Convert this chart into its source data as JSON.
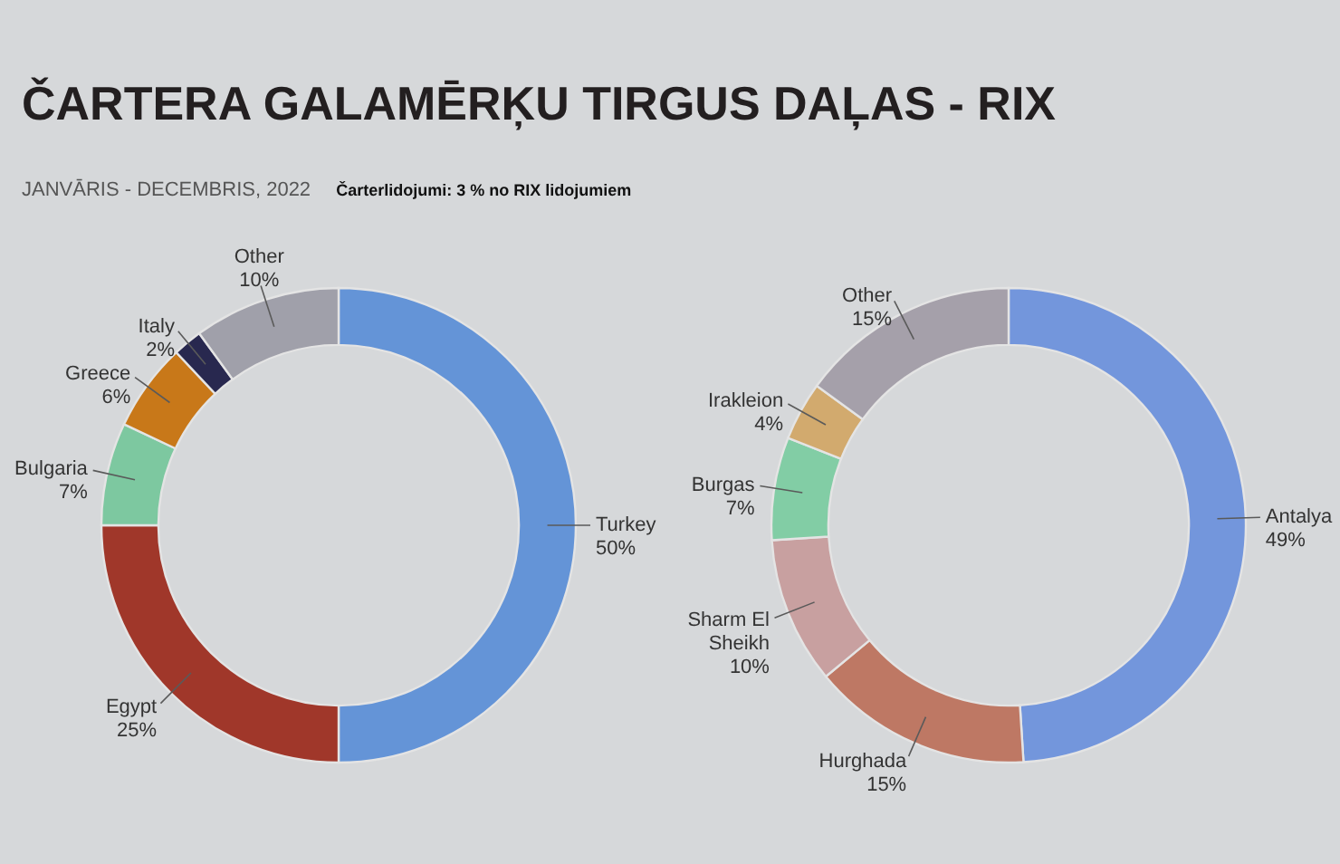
{
  "chart_data": [
    {
      "type": "donut",
      "title": "ČARTERA GALAMĒRĶU TIRGUS DAĻAS - RIX",
      "subtitle": "JANVĀRIS - DECEMBRIS, 2022",
      "annotations": [
        "Čarterlidojumi: 3 % no RIX lidojumiem"
      ],
      "categories": [
        "Turkey",
        "Egypt",
        "Bulgaria",
        "Greece",
        "Italy",
        "Other"
      ],
      "values": [
        50,
        25,
        7,
        6,
        2,
        10
      ],
      "value_labels": [
        "50%",
        "25%",
        "7%",
        "6%",
        "2%",
        "10%"
      ],
      "colors": [
        "#6494d7",
        "#a0372a",
        "#7dc8a0",
        "#c87819",
        "#28284f",
        "#a0a0aa"
      ]
    },
    {
      "type": "donut",
      "categories": [
        "Antalya",
        "Hurghada",
        "Sharm El Sheikh",
        "Burgas",
        "Irakleion",
        "Other"
      ],
      "values": [
        49,
        15,
        10,
        7,
        4,
        15
      ],
      "value_labels": [
        "49%",
        "15%",
        "10%",
        "7%",
        "4%",
        "15%"
      ],
      "colors": [
        "#7396dc",
        "#be7864",
        "#c8a0a0",
        "#82cda5",
        "#d2aa6e",
        "#a5a0aa"
      ]
    }
  ]
}
